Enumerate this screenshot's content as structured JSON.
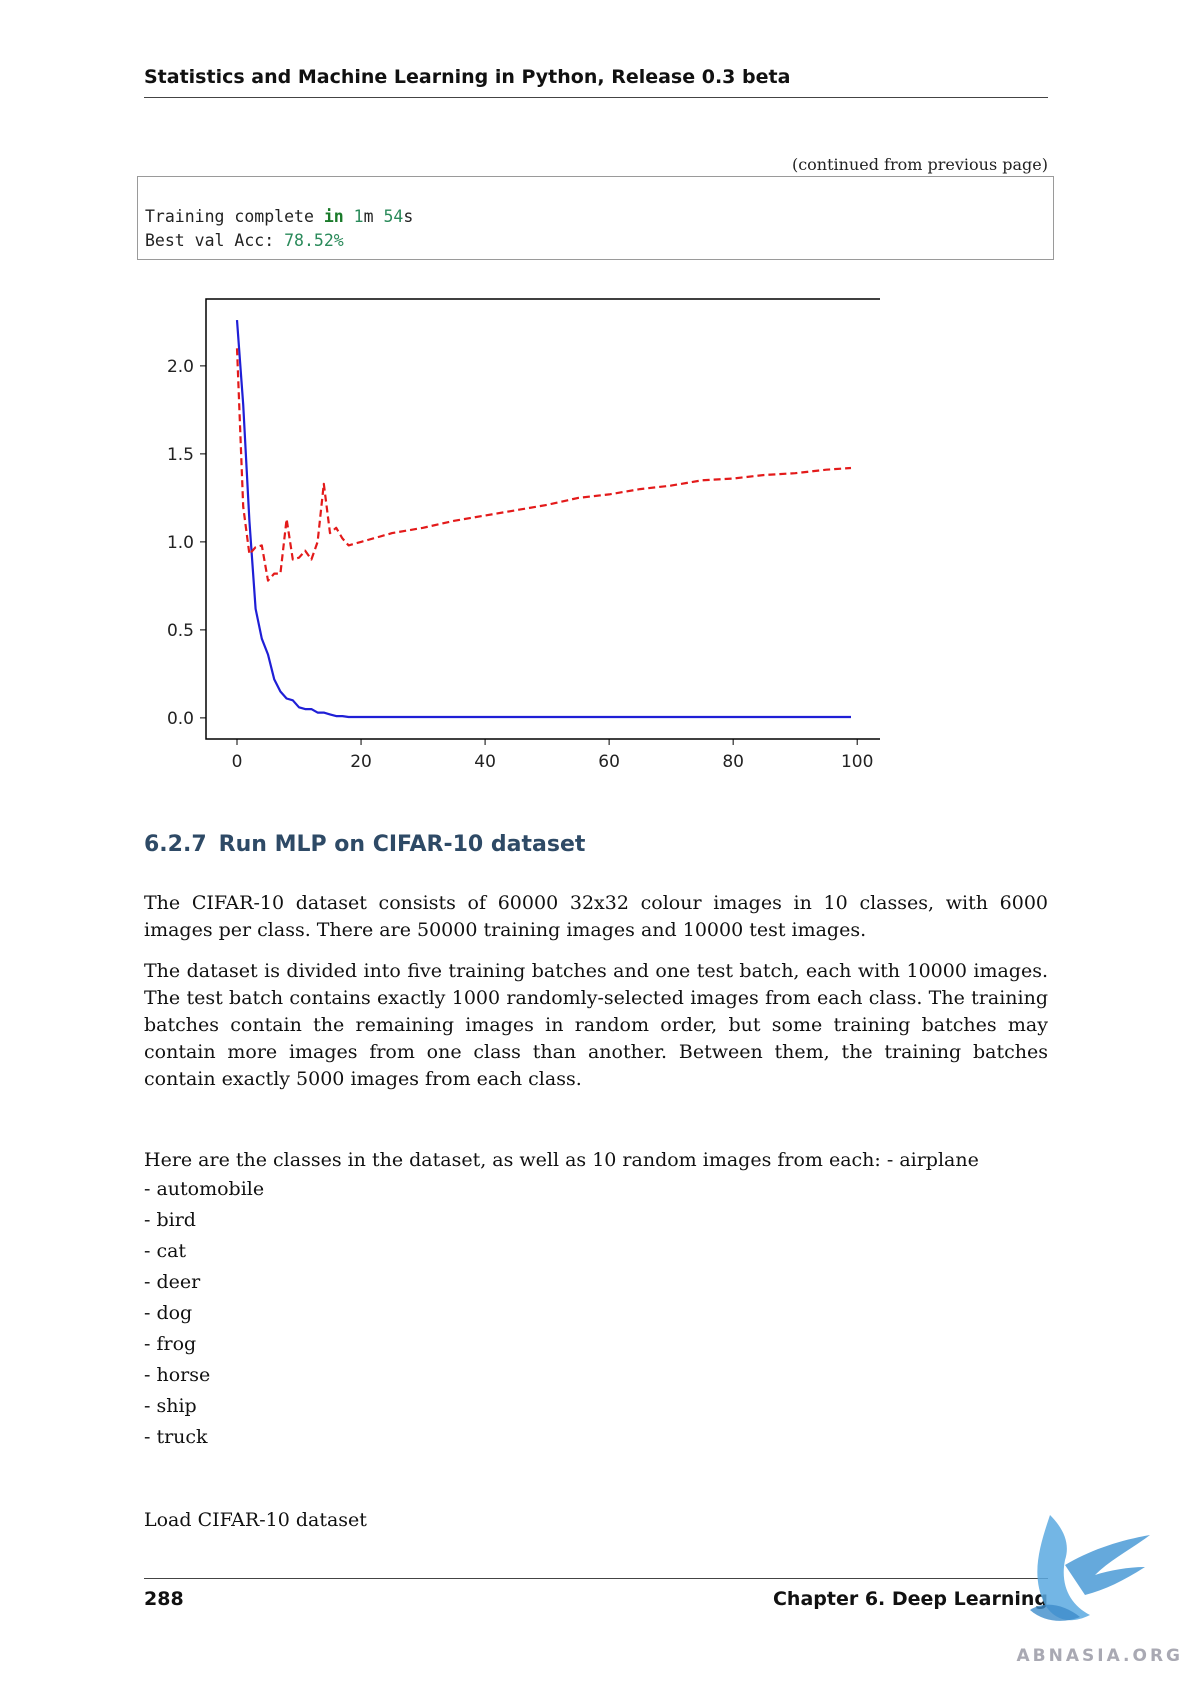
{
  "header": {
    "title": "Statistics and Machine Learning in Python, Release 0.3 beta"
  },
  "continued_note": "(continued from previous page)",
  "code": {
    "line1": {
      "pre": "Training complete ",
      "kw": "in",
      "mid1": " ",
      "n1": "1",
      "mid2": "m ",
      "n2": "54",
      "post": "s"
    },
    "line2": {
      "pre": "Best val Acc: ",
      "num": "78.52%"
    }
  },
  "chart_data": {
    "type": "line",
    "xlim": [
      -5,
      104
    ],
    "ylim": [
      -0.12,
      2.38
    ],
    "xticks": [
      0,
      20,
      40,
      60,
      80,
      100
    ],
    "yticks": [
      0.0,
      0.5,
      1.0,
      1.5,
      2.0
    ],
    "xtick_labels": [
      "0",
      "20",
      "40",
      "60",
      "80",
      "100"
    ],
    "ytick_labels": [
      "0.0",
      "0.5",
      "1.0",
      "1.5",
      "2.0"
    ],
    "grid": false,
    "series": [
      {
        "color": "#1f1fd6",
        "style": "solid",
        "x": [
          0,
          1,
          2,
          3,
          4,
          5,
          6,
          7,
          8,
          9,
          10,
          11,
          12,
          13,
          14,
          15,
          16,
          17,
          18,
          20,
          25,
          30,
          40,
          50,
          60,
          70,
          80,
          90,
          99
        ],
        "values": [
          2.26,
          1.78,
          1.12,
          0.62,
          0.45,
          0.36,
          0.22,
          0.15,
          0.11,
          0.1,
          0.06,
          0.05,
          0.05,
          0.03,
          0.03,
          0.02,
          0.01,
          0.01,
          0.005,
          0.005,
          0.005,
          0.005,
          0.005,
          0.005,
          0.005,
          0.005,
          0.005,
          0.005,
          0.005
        ]
      },
      {
        "color": "#e31a1a",
        "style": "dashed",
        "x": [
          0,
          1,
          2,
          3,
          4,
          5,
          6,
          7,
          8,
          9,
          10,
          11,
          12,
          13,
          14,
          15,
          16,
          17,
          18,
          19,
          20,
          25,
          30,
          35,
          40,
          45,
          50,
          55,
          60,
          65,
          70,
          75,
          80,
          85,
          90,
          95,
          99
        ],
        "values": [
          2.1,
          1.2,
          0.93,
          0.97,
          0.98,
          0.78,
          0.82,
          0.82,
          1.13,
          0.9,
          0.91,
          0.95,
          0.9,
          1.0,
          1.33,
          1.05,
          1.08,
          1.02,
          0.98,
          0.99,
          1.0,
          1.05,
          1.08,
          1.12,
          1.15,
          1.18,
          1.21,
          1.25,
          1.27,
          1.3,
          1.32,
          1.35,
          1.36,
          1.38,
          1.39,
          1.41,
          1.42
        ]
      }
    ]
  },
  "section": {
    "number": "6.2.7",
    "title": "Run MLP on CIFAR-10 dataset"
  },
  "paragraphs": {
    "p1": "The CIFAR-10 dataset consists of 60000 32x32 colour images in 10 classes, with 6000 images per class. There are 50000 training images and 10000 test images.",
    "p2": "The dataset is divided into five training batches and one test batch, each with 10000 images. The test batch contains exactly 1000 randomly-selected images from each class. The training batches contain the remaining images in random order, but some training batches may contain more images from one class than another. Between them, the training batches contain exactly 5000 images from each class.",
    "p3": "Here are the classes in the dataset, as well as 10 random images from each: - airplane"
  },
  "classes": [
    "- automobile",
    "- bird",
    "- cat",
    "- deer",
    "- dog",
    "- frog",
    "- horse",
    "- ship",
    "- truck"
  ],
  "load_text": "Load CIFAR-10 dataset",
  "footer": {
    "page_number": "288",
    "chapter": "Chapter 6. Deep Learning"
  },
  "watermark": {
    "text": "ABNASIA.ORG",
    "color": "#5aa9e0"
  }
}
